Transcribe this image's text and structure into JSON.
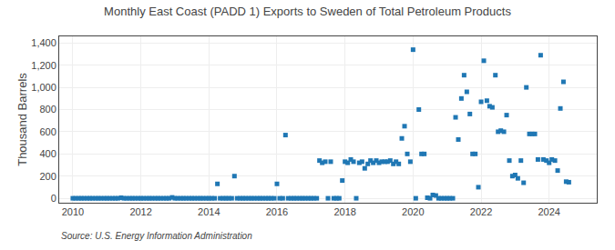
{
  "chart_data": {
    "type": "scatter",
    "title": "Monthly East Coast (PADD 1) Exports to Sweden of Total Petroleum Products",
    "y_label": "Thousand Barrels",
    "annotations": [
      "Source: U.S. Energy Information Administration"
    ],
    "marker": "square",
    "grid": true,
    "xlim": [
      2009.6,
      2025.4
    ],
    "xticks": [
      2010,
      2012,
      2014,
      2016,
      2018,
      2020,
      2022,
      2024
    ],
    "ylim": [
      -40,
      1460
    ],
    "yticks": [
      0,
      200,
      400,
      600,
      800,
      {
        "value": 1000,
        "label": "1,000"
      },
      {
        "value": 1200,
        "label": "1,200"
      },
      {
        "value": 1400,
        "label": "1,400"
      }
    ],
    "x": [
      2010.0,
      2010.08,
      2010.17,
      2010.25,
      2010.33,
      2010.42,
      2010.5,
      2010.58,
      2010.67,
      2010.75,
      2010.83,
      2010.92,
      2011.0,
      2011.08,
      2011.17,
      2011.25,
      2011.33,
      2011.42,
      2011.5,
      2011.58,
      2011.67,
      2011.75,
      2011.83,
      2011.92,
      2012.0,
      2012.08,
      2012.17,
      2012.25,
      2012.33,
      2012.42,
      2012.5,
      2012.58,
      2012.67,
      2012.75,
      2012.83,
      2012.92,
      2013.0,
      2013.08,
      2013.17,
      2013.25,
      2013.33,
      2013.42,
      2013.5,
      2013.58,
      2013.67,
      2013.75,
      2013.83,
      2013.92,
      2014.0,
      2014.08,
      2014.17,
      2014.25,
      2014.33,
      2014.42,
      2014.5,
      2014.58,
      2014.67,
      2014.75,
      2014.83,
      2014.92,
      2015.0,
      2015.08,
      2015.17,
      2015.25,
      2015.33,
      2015.42,
      2015.5,
      2015.58,
      2015.67,
      2015.75,
      2015.83,
      2015.92,
      2016.0,
      2016.08,
      2016.17,
      2016.25,
      2016.33,
      2016.42,
      2016.5,
      2016.58,
      2016.67,
      2016.75,
      2016.83,
      2016.92,
      2017.0,
      2017.08,
      2017.17,
      2017.25,
      2017.33,
      2017.42,
      2017.5,
      2017.58,
      2017.67,
      2017.75,
      2017.83,
      2017.92,
      2018.0,
      2018.08,
      2018.17,
      2018.25,
      2018.33,
      2018.42,
      2018.5,
      2018.58,
      2018.67,
      2018.75,
      2018.83,
      2018.92,
      2019.0,
      2019.08,
      2019.17,
      2019.25,
      2019.33,
      2019.42,
      2019.5,
      2019.58,
      2019.67,
      2019.75,
      2019.83,
      2019.92,
      2020.0,
      2020.08,
      2020.17,
      2020.25,
      2020.33,
      2020.42,
      2020.5,
      2020.58,
      2020.67,
      2020.75,
      2020.83,
      2020.92,
      2021.0,
      2021.08,
      2021.17,
      2021.25,
      2021.33,
      2021.42,
      2021.5,
      2021.58,
      2021.67,
      2021.75,
      2021.83,
      2021.92,
      2022.0,
      2022.08,
      2022.17,
      2022.25,
      2022.33,
      2022.42,
      2022.5,
      2022.58,
      2022.67,
      2022.75,
      2022.83,
      2022.92,
      2023.0,
      2023.08,
      2023.17,
      2023.25,
      2023.33,
      2023.42,
      2023.5,
      2023.58,
      2023.67,
      2023.75,
      2023.83,
      2023.92,
      2024.0,
      2024.08,
      2024.17,
      2024.25,
      2024.33,
      2024.42,
      2024.5,
      2024.58
    ],
    "values": [
      0,
      0,
      0,
      0,
      0,
      0,
      0,
      0,
      0,
      0,
      0,
      0,
      0,
      0,
      0,
      0,
      0,
      5,
      0,
      0,
      0,
      0,
      0,
      0,
      0,
      0,
      0,
      0,
      0,
      0,
      0,
      0,
      0,
      0,
      0,
      8,
      0,
      0,
      0,
      0,
      0,
      0,
      0,
      0,
      0,
      0,
      0,
      0,
      0,
      0,
      0,
      130,
      0,
      0,
      0,
      0,
      0,
      200,
      0,
      0,
      0,
      0,
      0,
      0,
      0,
      0,
      0,
      0,
      0,
      0,
      0,
      0,
      130,
      0,
      0,
      570,
      0,
      0,
      0,
      0,
      0,
      0,
      0,
      0,
      0,
      0,
      0,
      340,
      320,
      330,
      0,
      330,
      0,
      0,
      0,
      160,
      330,
      320,
      350,
      330,
      0,
      320,
      330,
      270,
      310,
      340,
      320,
      340,
      320,
      330,
      330,
      330,
      340,
      310,
      330,
      310,
      540,
      650,
      400,
      330,
      1340,
      0,
      800,
      400,
      400,
      5,
      0,
      30,
      25,
      0,
      0,
      0,
      0,
      0,
      0,
      730,
      530,
      900,
      1110,
      960,
      760,
      400,
      400,
      100,
      870,
      1240,
      880,
      830,
      820,
      1110,
      600,
      610,
      600,
      750,
      340,
      200,
      210,
      180,
      340,
      140,
      1000,
      580,
      580,
      580,
      350,
      1290,
      350,
      340,
      320,
      350,
      340,
      250,
      810,
      1050,
      150,
      145
    ]
  }
}
